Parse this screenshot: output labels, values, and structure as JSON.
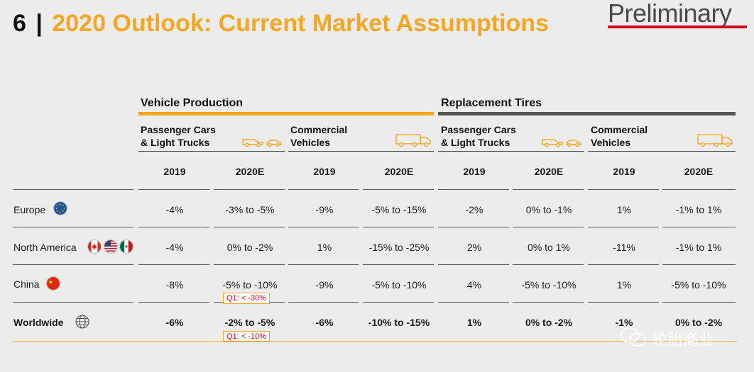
{
  "title": {
    "number": "6",
    "separator": "|",
    "text": "2020 Outlook: Current Market Assumptions"
  },
  "badge": {
    "text": "Preliminary"
  },
  "groups": [
    {
      "label": "Vehicle Production",
      "color": "#f5a623"
    },
    {
      "label": "Replacement Tires",
      "color": "#555555"
    }
  ],
  "subgroups": [
    {
      "line1": "Passenger Cars",
      "line2": "& Light Trucks",
      "icon": "car-icon"
    },
    {
      "line1": "Commercial",
      "line2": "Vehicles",
      "icon": "truck-icon"
    },
    {
      "line1": "Passenger Cars",
      "line2": "& Light Trucks",
      "icon": "car-icon"
    },
    {
      "line1": "Commercial",
      "line2": "Vehicles",
      "icon": "truck-icon"
    }
  ],
  "years": [
    "2019",
    "2020E",
    "2019",
    "2020E",
    "2019",
    "2020E",
    "2019",
    "2020E"
  ],
  "rows": [
    {
      "label": "Europe",
      "icons": [
        "eu-flag-icon"
      ],
      "values": [
        "-4%",
        "-3% to -5%",
        "-9%",
        "-5% to -15%",
        "-2%",
        "0% to -1%",
        "1%",
        "-1% to 1%"
      ]
    },
    {
      "label": "North America",
      "icons": [
        "canada-flag-icon",
        "usa-flag-icon",
        "mexico-flag-icon"
      ],
      "values": [
        "-4%",
        "0% to -2%",
        "1%",
        "-15% to -25%",
        "2%",
        "0% to 1%",
        "-11%",
        "-1% to 1%"
      ]
    },
    {
      "label": "China",
      "icons": [
        "china-flag-icon"
      ],
      "values": [
        "-8%",
        "-5% to -10%",
        "-9%",
        "-5% to -10%",
        "4%",
        "-5% to -10%",
        "1%",
        "-5% to -10%"
      ]
    },
    {
      "label": "Worldwide",
      "icons": [
        "globe-icon"
      ],
      "values": [
        "-6%",
        "-2% to -5%",
        "-6%",
        "-10% to -15%",
        "1%",
        "0% to -2%",
        "-1%",
        "0% to -2%"
      ]
    }
  ],
  "callouts": [
    "Q1: < -30%",
    "Q1: < -10%"
  ],
  "watermark": "轮胎商业"
}
